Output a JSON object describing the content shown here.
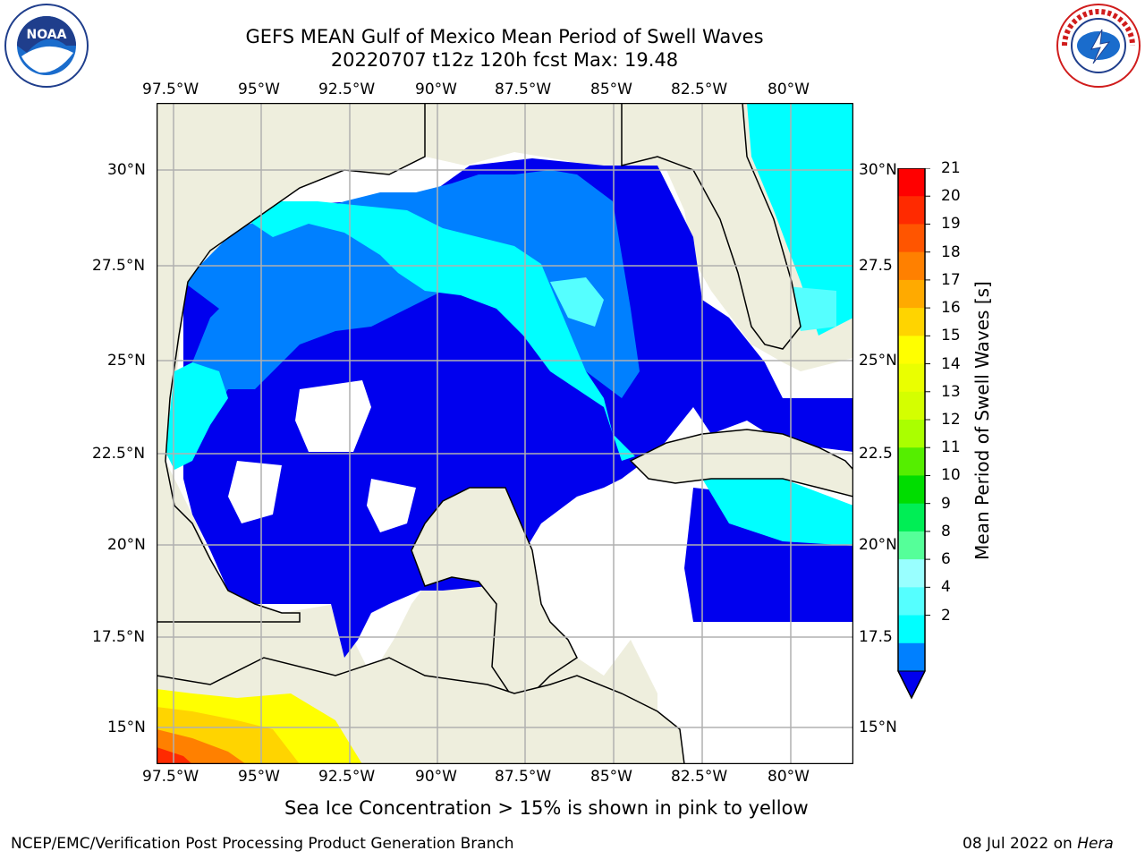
{
  "header": {
    "title_line1": "GEFS MEAN Gulf of Mexico Mean Period of Swell Waves",
    "title_line2": "20220707 t12z 120h fcst   Max: 19.48"
  },
  "logos": {
    "left_text_top": "NATIONAL OCEANIC AND ATMOSPHERIC ADMINISTRATION",
    "left_text_bottom": "U.S. DEPARTMENT OF COMMERCE",
    "left_center": "NOAA",
    "right_text": "NATIONAL WEATHER SERVICE"
  },
  "map": {
    "lon_labels": [
      "97.5°W",
      "95°W",
      "92.5°W",
      "90°W",
      "87.5°W",
      "85°W",
      "82.5°W",
      "80°W"
    ],
    "lat_labels_left": [
      "30°N",
      "27.5°N",
      "25°N",
      "22.5°N",
      "20°N",
      "17.5°N",
      "15°N"
    ],
    "lat_labels_right": [
      "30°N",
      "27.5",
      "25°N",
      "22.5",
      "20°N",
      "17.5",
      "15°N"
    ],
    "colors": {
      "land": "#eeeedd",
      "grid": "#b0b0b0",
      "ocean_low": "#0000ee",
      "ocean_2_4": "#0080ff",
      "ocean_4_6": "#00ffff",
      "ocean_6_8": "#55ffff"
    }
  },
  "colorbar": {
    "title": "Mean Period of Swell Waves [s]",
    "ticks": [
      "21",
      "20",
      "19",
      "18",
      "17",
      "16",
      "15",
      "14",
      "13",
      "12",
      "11",
      "10",
      "9",
      "8",
      "6",
      "4",
      "2"
    ],
    "colors": [
      "#ff0000",
      "#ff2a00",
      "#ff5500",
      "#ff8000",
      "#ffaa00",
      "#ffd400",
      "#ffff00",
      "#eaff00",
      "#d4ff00",
      "#aaff00",
      "#55ee00",
      "#00dd00",
      "#00ee55",
      "#55ff99",
      "#99ffff",
      "#55ffff",
      "#00ffff",
      "#0080ff"
    ],
    "under_color": "#0000ee"
  },
  "caption": "Sea Ice Concentration > 15% is shown in pink to yellow",
  "footer": {
    "left": "NCEP/EMC/Verification Post Processing Product Generation Branch",
    "right_prefix": "08 Jul 2022 on ",
    "right_host": "Hera"
  }
}
